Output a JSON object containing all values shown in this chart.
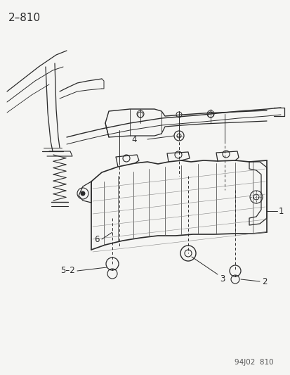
{
  "title": "2–810",
  "footer": "94J02  810",
  "bg_color": "#f5f5f3",
  "line_color": "#2a2a2a",
  "label_color": "#1a1a1a",
  "title_fontsize": 11,
  "footer_fontsize": 7.5,
  "label_fontsize": 8.5,
  "figure_width": 4.14,
  "figure_height": 5.33,
  "dpi": 100
}
